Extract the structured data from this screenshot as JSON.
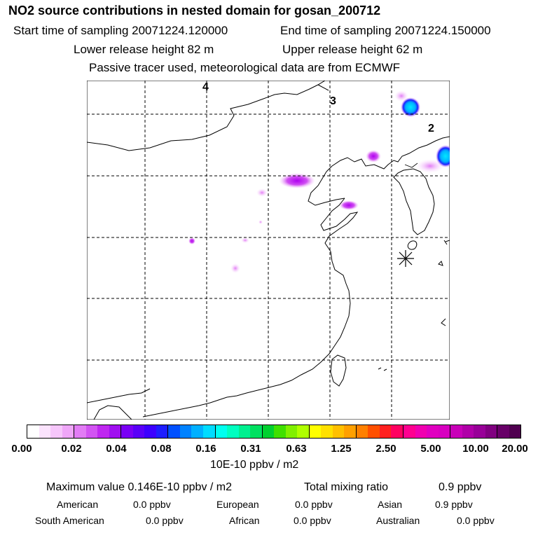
{
  "title": "NO2 source contributions in nested domain for gosan_200712",
  "header": {
    "start_label": "Start time of sampling 20071224.120000",
    "end_label": "End time of sampling 20071224.150000",
    "lower_label": "Lower release height   82 m",
    "upper_label": "Upper release height   62 m",
    "note": "Passive tracer used, meteorological data are from ECMWF"
  },
  "map": {
    "grid_labels": [
      "4",
      "3",
      "2"
    ],
    "receptor_marker": "asterisk-icon"
  },
  "colorbar": {
    "ticks": [
      "0.00",
      "0.02",
      "0.04",
      "0.08",
      "0.16",
      "0.31",
      "0.63",
      "1.25",
      "2.50",
      "5.00",
      "10.00",
      "20.00"
    ],
    "colors": [
      "#ffffff",
      "#fbe3fd",
      "#f6c6fb",
      "#efa6f8",
      "#e27cf5",
      "#d254f2",
      "#bf28f0",
      "#a010f0",
      "#7a00f5",
      "#5a00f8",
      "#3c00ff",
      "#1e1eff",
      "#0050ff",
      "#0082ff",
      "#00b0ff",
      "#00dcff",
      "#00fff0",
      "#00ffc0",
      "#00f090",
      "#00e060",
      "#00d030",
      "#40e000",
      "#80f000",
      "#b0ff00",
      "#ffff00",
      "#ffe000",
      "#ffc000",
      "#ffa000",
      "#ff8000",
      "#ff5000",
      "#ff2020",
      "#ff0060",
      "#ff0090",
      "#f000b0",
      "#e000c0",
      "#d800c0",
      "#c800b8",
      "#b000a8",
      "#980098",
      "#800080",
      "#680068",
      "#500050"
    ],
    "units": "10E-10 ppbv / m2"
  },
  "summary": {
    "max_label": "Maximum value  0.146E-10 ppbv / m2",
    "total_label": "Total mixing ratio",
    "total_value": "0.9 ppbv",
    "american_label": "American",
    "american_value": "0.0 ppbv",
    "european_label": "European",
    "european_value": "0.0 ppbv",
    "asian_label": "Asian",
    "asian_value": "0.9 ppbv",
    "south_american_label": "South American",
    "south_american_value": "0.0 ppbv",
    "african_label": "African",
    "african_value": "0.0 ppbv",
    "australian_label": "Australian",
    "australian_value": "0.0 ppbv"
  }
}
